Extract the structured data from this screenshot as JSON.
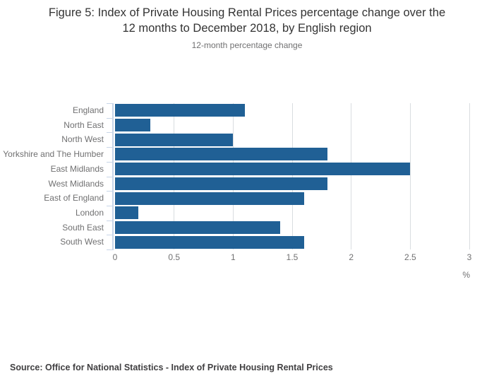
{
  "figure": {
    "title_line1": "Figure 5: Index of Private Housing Rental Prices percentage change over the",
    "title_line2": "12 months to December 2018, by English region",
    "subtitle": "12-month percentage change",
    "source": "Source: Office for National Statistics - Index of Private Housing Rental Prices"
  },
  "colors": {
    "bar": "#206095",
    "axis_line": "#c8d6e8",
    "gridline": "#d9dde0",
    "title_text": "#333333",
    "muted_text": "#707071",
    "source_text": "#414042"
  },
  "chart_data": {
    "type": "bar",
    "orientation": "horizontal",
    "title": "Figure 5: Index of Private Housing Rental Prices percentage change over the 12 months to December 2018, by English region",
    "subtitle": "12-month percentage change",
    "categories": [
      "England",
      "North East",
      "North West",
      "Yorkshire and The Humber",
      "East Midlands",
      "West Midlands",
      "East of England",
      "London",
      "South East",
      "South West"
    ],
    "values": [
      1.1,
      0.3,
      1.0,
      1.8,
      2.5,
      1.8,
      1.6,
      0.2,
      1.4,
      1.6
    ],
    "xlabel": "%",
    "ylabel": "",
    "xlim": [
      0,
      3
    ],
    "xtick_labels": [
      "0",
      "0.5",
      "1",
      "1.5",
      "2",
      "2.5",
      "3"
    ],
    "xtick_values": [
      0,
      0.5,
      1,
      1.5,
      2,
      2.5,
      3
    ],
    "grid": true,
    "legend": "none"
  }
}
